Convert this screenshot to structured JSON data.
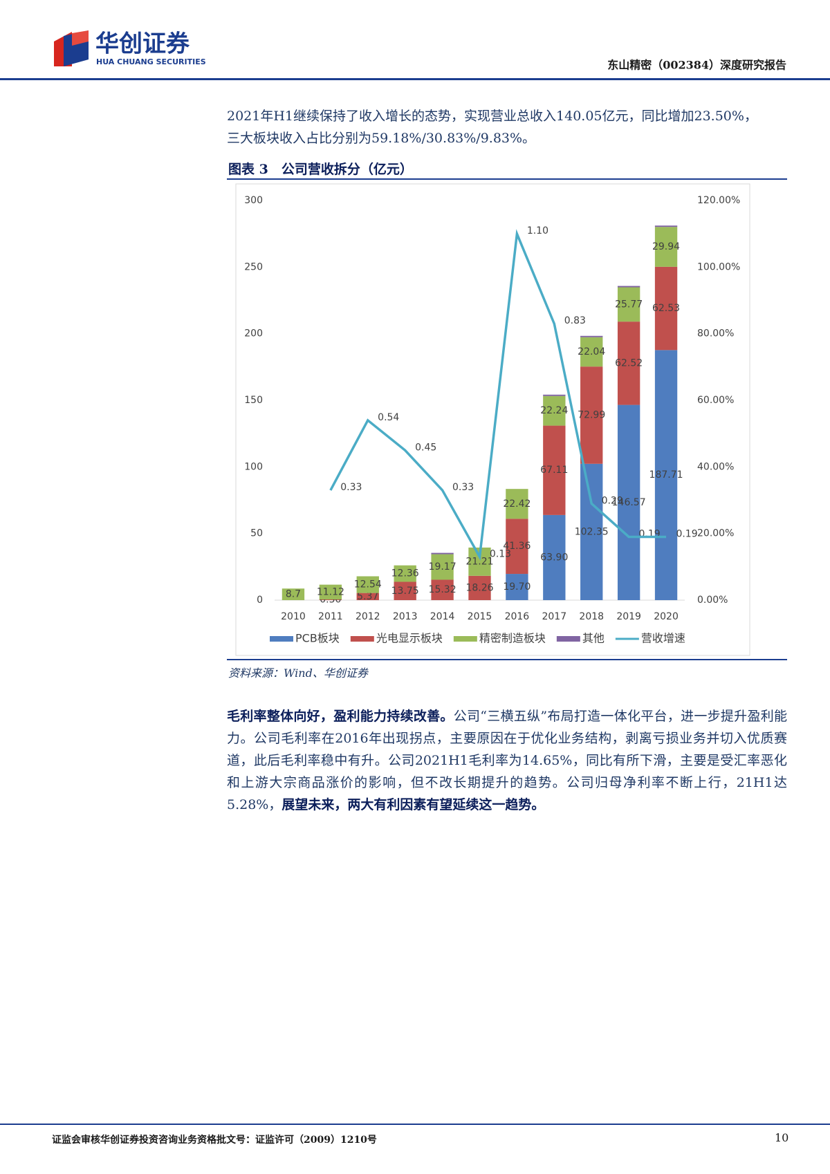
{
  "header": {
    "logo_cn": "华创证券",
    "logo_en": "HUA CHUANG SECURITIES",
    "report": "东山精密（002384）深度研究报告"
  },
  "intro": [
    "2021年H1继续保持了收入增长的态势，实现营业总收入140.05亿元，同比增加23.50%，",
    "三大板块收入占比分别为59.18%/30.83%/9.83%。"
  ],
  "figure_title": "图表 3　公司营收拆分（亿元）",
  "chart_data": {
    "type": "bar",
    "stacked": true,
    "categories": [
      "2010",
      "2011",
      "2012",
      "2013",
      "2014",
      "2015",
      "2016",
      "2017",
      "2018",
      "2019",
      "2020"
    ],
    "series": [
      {
        "name": "PCB板块",
        "color": "#4f7dbf",
        "values": [
          0,
          0,
          0,
          0,
          0,
          0,
          19.7,
          63.9,
          102.35,
          146.57,
          187.71
        ],
        "value_labels": [
          null,
          null,
          null,
          null,
          null,
          null,
          "19.70",
          "63.90",
          "102.35",
          "146.57",
          "187.71"
        ]
      },
      {
        "name": "光电显示板块",
        "color": "#c0504d",
        "values": [
          0,
          0.5,
          5.37,
          13.75,
          15.32,
          18.26,
          41.36,
          67.11,
          72.99,
          62.52,
          62.53
        ],
        "value_labels": [
          null,
          "0.50",
          "5.37",
          "13.75",
          "15.32",
          "18.26",
          "41.36",
          "67.11",
          "72.99",
          "62.52",
          "62.53"
        ]
      },
      {
        "name": "精密制造板块",
        "color": "#9bbb59",
        "values": [
          8.7,
          11.12,
          12.54,
          12.36,
          19.17,
          21.21,
          22.42,
          22.24,
          22.04,
          25.77,
          29.94
        ],
        "value_labels": [
          "8.7",
          "11.12",
          "12.54",
          "12.36",
          "19.17",
          "21.21",
          "22.42",
          "22.24",
          "22.04",
          "25.77",
          "29.94"
        ]
      },
      {
        "name": "其他",
        "color": "#8064a2",
        "values": [
          0,
          0,
          0,
          0,
          1,
          0,
          0,
          1,
          1,
          1,
          1
        ]
      },
      {
        "name": "营收增速",
        "color": "#4bacc6",
        "type": "line",
        "axis": "y2",
        "values": [
          null,
          33,
          54,
          45,
          33,
          13,
          110,
          83,
          29,
          19,
          19
        ],
        "value_labels": [
          null,
          "0.33",
          "0.54",
          "0.45",
          "0.33",
          "0.13",
          "1.10",
          "0.83",
          "0.29",
          "0.19",
          "0.19"
        ]
      }
    ],
    "ylim": [
      0,
      300
    ],
    "yticks": [
      0,
      50,
      100,
      150,
      200,
      250,
      300
    ],
    "y2lim": [
      0,
      120
    ],
    "y2ticks": [
      {
        "value": 0,
        "label": "0.00%"
      },
      {
        "value": 20,
        "label": "20.00%"
      },
      {
        "value": 40,
        "label": "40.00%"
      },
      {
        "value": 60,
        "label": "60.00%"
      },
      {
        "value": 80,
        "label": "80.00%"
      },
      {
        "value": 100,
        "label": "100.00%"
      },
      {
        "value": 120,
        "label": "120.00%"
      }
    ],
    "legend": "bottom",
    "grid": false
  },
  "source": "资料来源：Wind、华创证券",
  "body": {
    "lead": "毛利率整体向好，盈利能力持续改善。",
    "text": "公司“三横五纵”布局打造一体化平台，进一步提升盈利能力。公司毛利率在2016年出现拐点，主要原因在于优化业务结构，剥离亏损业务并切入优质赛道，此后毛利率稳中有升。公司2021H1毛利率为14.65%，同比有所下滑，主要是受汇率恶化和上游大宗商品涨价的影响，但不改长期提升的趋势。公司归母净利率不断上行，21H1达5.28%，",
    "conclusion": "展望未来，两大有利因素有望延续这一趋势。"
  },
  "footer": {
    "notice": "证监会审核华创证券投资咨询业务资格批文号：证监许可（2009）1210号",
    "page": "10"
  }
}
